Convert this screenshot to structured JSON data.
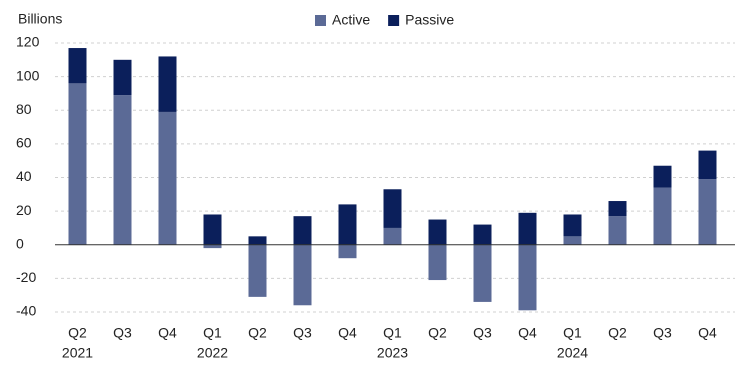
{
  "chart_data": {
    "type": "stacked-bar",
    "y_label": "Billions",
    "categories": [
      "Q2",
      "Q3",
      "Q4",
      "Q1",
      "Q2",
      "Q3",
      "Q4",
      "Q1",
      "Q2",
      "Q3",
      "Q4",
      "Q1",
      "Q2",
      "Q3",
      "Q4"
    ],
    "years": [
      "2021",
      null,
      null,
      "2022",
      null,
      null,
      null,
      "2023",
      null,
      null,
      null,
      "2024",
      null,
      null,
      null
    ],
    "series": [
      {
        "name": "Active",
        "color": "#5b6a96",
        "values": [
          96,
          89,
          79,
          -2,
          -31,
          -36,
          -8,
          10,
          -21,
          -34,
          -39,
          5,
          17,
          34,
          39
        ]
      },
      {
        "name": "Passive",
        "color": "#0b1f5b",
        "values": [
          21,
          21,
          33,
          18,
          5,
          17,
          24,
          23,
          15,
          12,
          19,
          13,
          9,
          13,
          17
        ]
      }
    ],
    "ylim": [
      -40,
      120
    ],
    "yticks": [
      -40,
      -20,
      0,
      20,
      40,
      60,
      80,
      100,
      120
    ],
    "grid": true,
    "legend": "top"
  }
}
